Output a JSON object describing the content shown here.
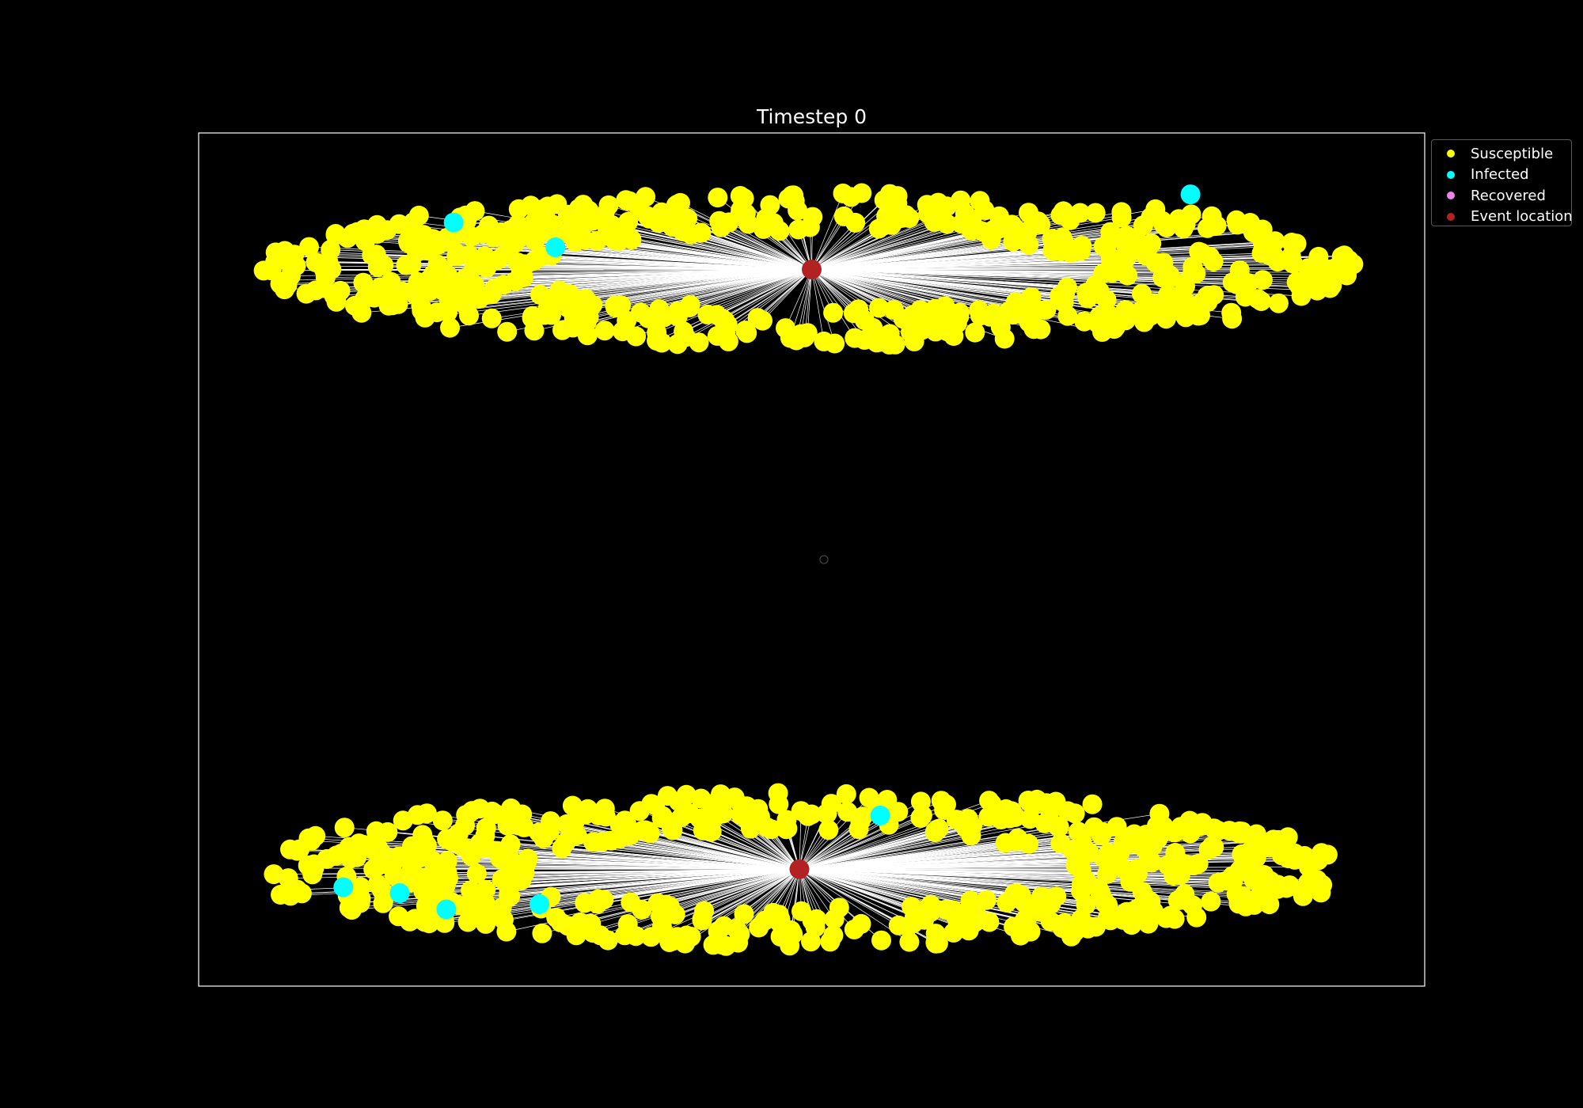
{
  "chart_data": {
    "type": "scatter",
    "title": "Timestep 0",
    "background": "#000000",
    "frame_color": "#ffffff",
    "edge_color": "#ffffff",
    "axes_visible": false,
    "grid": false,
    "legend_placement": "outside-top-right",
    "legend": [
      {
        "label": "Susceptible",
        "color": "#ffff00"
      },
      {
        "label": "Infected",
        "color": "#00ffff"
      },
      {
        "label": "Recovered",
        "color": "#ee82ee"
      },
      {
        "label": "Event location",
        "color": "#b22222"
      }
    ],
    "clusters": [
      {
        "name": "upper",
        "event_location": [
          0.5,
          0.84
        ],
        "infected": [
          [
            0.208,
            0.895
          ],
          [
            0.291,
            0.866
          ],
          [
            0.809,
            0.928
          ]
        ]
      },
      {
        "name": "lower",
        "event_location": [
          0.49,
          0.137
        ],
        "infected": [
          [
            0.118,
            0.116
          ],
          [
            0.164,
            0.109
          ],
          [
            0.202,
            0.09
          ],
          [
            0.278,
            0.096
          ],
          [
            0.556,
            0.2
          ]
        ]
      }
    ],
    "isolated_node": [
      0.51,
      0.5
    ]
  }
}
